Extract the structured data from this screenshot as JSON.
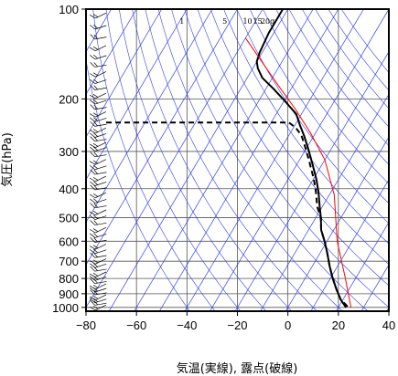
{
  "chart_data": {
    "type": "line",
    "title": "",
    "xlabel": "気温(実線), 露点(破線)",
    "ylabel": "気圧(hPa)",
    "xlim": [
      -80,
      40
    ],
    "ylim": [
      1030,
      100
    ],
    "y_scale": "log",
    "x_ticks": [
      -80,
      -60,
      -40,
      -20,
      0,
      20,
      40
    ],
    "x_tick_labels": [
      "−80",
      "−60",
      "−40",
      "−20",
      "0",
      "20",
      "40"
    ],
    "y_ticks": [
      100,
      200,
      300,
      400,
      500,
      600,
      700,
      800,
      900,
      1000
    ],
    "y_tick_labels": [
      "100",
      "200",
      "300",
      "400",
      "500",
      "600",
      "700",
      "800",
      "900",
      "1000"
    ],
    "skew_per_decade": 70,
    "grid": true,
    "mixing_ratio_labels": [
      "1",
      "5",
      "10",
      "15",
      "20g"
    ],
    "series": [
      {
        "role": "temperature",
        "style": "solid",
        "color": "#000000",
        "x": [
          -72,
          -72,
          -71,
          -70,
          -68,
          -64,
          -57,
          -49,
          -42,
          -38,
          -34,
          -29,
          -24,
          -19,
          -15,
          -11,
          -8,
          -5,
          -1,
          3,
          7,
          11,
          15,
          19,
          23
        ],
        "y": [
          100,
          120,
          140,
          150,
          158,
          170,
          185,
          205,
          225,
          245,
          265,
          295,
          330,
          370,
          410,
          460,
          500,
          550,
          600,
          660,
          730,
          800,
          870,
          940,
          1000
        ]
      },
      {
        "role": "dewpoint",
        "style": "dashed",
        "color": "#000000",
        "x": [
          -72,
          -43,
          -39,
          -35,
          -30,
          -25,
          -20,
          -16,
          -12,
          -8,
          -5,
          -1,
          3,
          7,
          11,
          15,
          19,
          24
        ],
        "y": [
          240,
          240,
          250,
          265,
          295,
          330,
          370,
          410,
          460,
          500,
          550,
          600,
          660,
          730,
          800,
          870,
          940,
          1000
        ]
      },
      {
        "role": "reference",
        "style": "solid",
        "color": "#ff0000",
        "x": [
          -80,
          -68,
          -56,
          -44,
          -32,
          -20,
          -8,
          4,
          16,
          25
        ],
        "y": [
          125,
          150,
          180,
          215,
          260,
          320,
          420,
          600,
          800,
          1000
        ]
      }
    ],
    "wind_barbs": {
      "x": -74,
      "pressures": [
        105,
        115,
        125,
        135,
        145,
        155,
        165,
        175,
        185,
        195,
        205,
        215,
        225,
        235,
        245,
        255,
        265,
        275,
        285,
        295,
        310,
        325,
        340,
        355,
        370,
        385,
        400,
        420,
        440,
        460,
        480,
        500,
        525,
        550,
        575,
        600,
        625,
        650,
        675,
        700,
        725,
        750,
        775,
        800,
        825,
        850,
        875,
        900,
        925,
        950,
        975,
        1000
      ]
    }
  }
}
